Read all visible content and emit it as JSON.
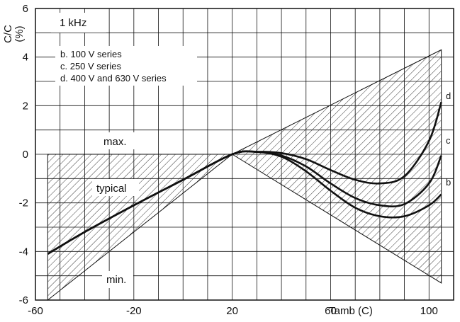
{
  "chart_data": {
    "type": "line",
    "ylabel_top": "C/C",
    "ylabel_unit": "(%)",
    "xlabel": "Tamb (C)",
    "frequency_label": "1 kHz",
    "legend_lines": [
      "b. 100 V series",
      "c. 250 V series",
      "d. 400 V and 630 V series"
    ],
    "annotations": {
      "max": "max.",
      "typical": "typical",
      "min": "min."
    },
    "xlim": [
      -60,
      110
    ],
    "ylim": [
      -6,
      6
    ],
    "x_ticks": [
      -60,
      -20,
      20,
      60,
      100
    ],
    "x_tick_labels": [
      "-60",
      "-20",
      "20",
      "60",
      "100"
    ],
    "y_ticks": [
      6,
      4,
      2,
      0,
      -2,
      -4,
      -6
    ],
    "y_tick_labels": [
      "6",
      "4",
      "2",
      "0",
      "-2",
      "-4",
      "-6"
    ],
    "grid": true,
    "envelope": {
      "max": {
        "x": [
          -55,
          20,
          105
        ],
        "y": [
          0,
          0,
          4.3
        ]
      },
      "min": {
        "x": [
          -55,
          20,
          105
        ],
        "y": [
          -6,
          0,
          -5.3
        ]
      }
    },
    "series": [
      {
        "name": "b",
        "x": [
          -55,
          -40,
          -20,
          0,
          20,
          30,
          40,
          50,
          60,
          70,
          80,
          90,
          100,
          105
        ],
        "y": [
          -4.1,
          -3.2,
          -2.1,
          -1.05,
          0.0,
          0.1,
          -0.1,
          -0.7,
          -1.5,
          -2.2,
          -2.55,
          -2.55,
          -2.1,
          -1.65
        ]
      },
      {
        "name": "c",
        "x": [
          -55,
          -40,
          -20,
          0,
          20,
          30,
          40,
          50,
          60,
          70,
          80,
          90,
          100,
          105
        ],
        "y": [
          -4.1,
          -3.2,
          -2.1,
          -1.05,
          0.0,
          0.1,
          -0.05,
          -0.5,
          -1.2,
          -1.8,
          -2.1,
          -2.05,
          -1.2,
          -0.05
        ]
      },
      {
        "name": "d",
        "x": [
          -55,
          -40,
          -20,
          0,
          20,
          30,
          40,
          50,
          60,
          70,
          80,
          90,
          100,
          105
        ],
        "y": [
          -4.1,
          -3.2,
          -2.1,
          -1.05,
          0.0,
          0.1,
          0.05,
          -0.2,
          -0.65,
          -1.05,
          -1.2,
          -0.9,
          0.55,
          2.15
        ]
      }
    ]
  }
}
